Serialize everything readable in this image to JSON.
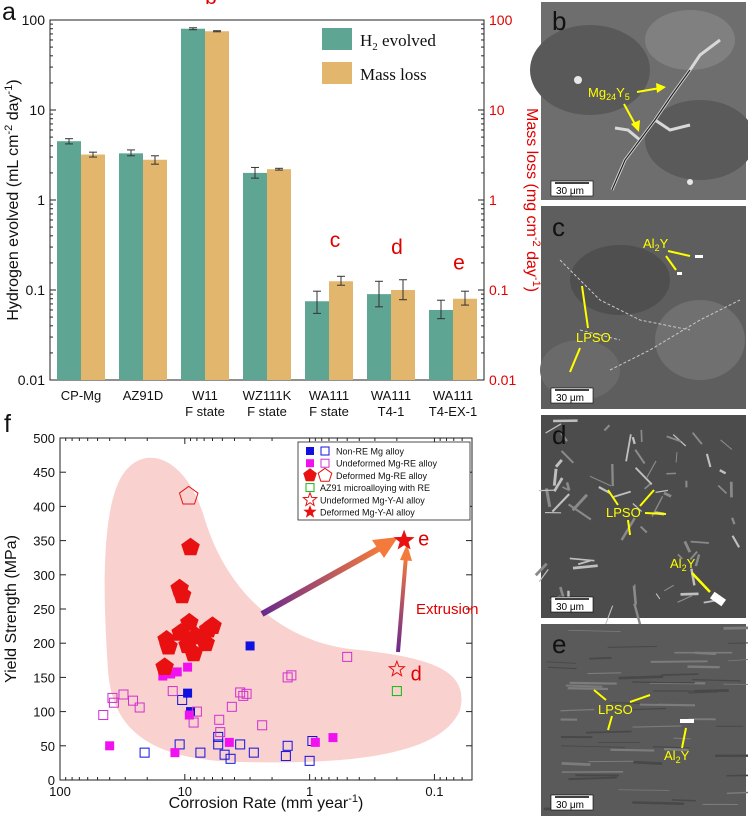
{
  "panel_labels": {
    "a": "a",
    "b": "b",
    "c": "c",
    "d": "d",
    "e": "e",
    "f": "f"
  },
  "chart_data": [
    {
      "type": "bar",
      "panel": "a",
      "categories": [
        "CP-Mg",
        "AZ91D",
        "W11|F state",
        "WZ111K|F state",
        "WA111|F state",
        "WA111|T4-1",
        "WA111|T4-EX-1"
      ],
      "series": [
        {
          "name": "H2 evolved",
          "values": [
            4.5,
            3.3,
            80,
            2.0,
            0.075,
            0.09,
            0.06
          ],
          "err_low": [
            4.2,
            3.1,
            78,
            1.75,
            0.055,
            0.065,
            0.048
          ],
          "err_high": [
            4.8,
            3.6,
            82,
            2.3,
            0.097,
            0.125,
            0.077
          ],
          "color": "#5ea594"
        },
        {
          "name": "Mass loss",
          "values": [
            3.2,
            2.8,
            75,
            2.2,
            0.125,
            0.1,
            0.08
          ],
          "err_low": [
            3.0,
            2.5,
            74,
            2.15,
            0.113,
            0.078,
            0.068
          ],
          "err_high": [
            3.4,
            3.1,
            76,
            2.25,
            0.142,
            0.13,
            0.097
          ],
          "color": "#e2b66c"
        }
      ],
      "legend": {
        "h2_prefix": "H",
        "h2_sub": "2",
        "h2_suffix": " evolved",
        "mass": "Mass loss"
      },
      "ylabel_left": {
        "main": "Hydrogen evolved (mL cm",
        "sup1": "-2",
        "mid": " day",
        "sup2": "-1",
        "end": ")"
      },
      "ylabel_right": {
        "main": "Mass loss (mg cm",
        "sup1": "-2",
        "mid": " day",
        "sup2": "-1",
        "end": ")"
      },
      "yscale": "log",
      "ylim": [
        0.01,
        100
      ],
      "yticks": [
        "0.01",
        "0.1",
        "1",
        "10",
        "100"
      ],
      "annotations": [
        {
          "text": "b",
          "category": 2,
          "value": 150
        },
        {
          "text": "c",
          "category": 4,
          "value": 0.3
        },
        {
          "text": "d",
          "category": 5,
          "value": 0.25
        },
        {
          "text": "e",
          "category": 6,
          "value": 0.17
        }
      ]
    },
    {
      "type": "scatter",
      "panel": "f",
      "xlabel": {
        "main": "Corrosion Rate (mm year",
        "sup": "-1",
        "end": ")"
      },
      "ylabel": "Yield Strength (MPa)",
      "xscale": "log_reversed",
      "xlim": [
        100,
        0.05
      ],
      "ylim": [
        0,
        500
      ],
      "xticks": [
        "100",
        "10",
        "1",
        "0.1"
      ],
      "yticks": [
        "0",
        "50",
        "100",
        "150",
        "200",
        "250",
        "300",
        "350",
        "400",
        "450",
        "500"
      ],
      "legend": [
        {
          "key": "nonre",
          "filled": "Non-RE Mg alloy"
        },
        {
          "key": "undef",
          "filled": "Undeformed Mg-RE alloy"
        },
        {
          "key": "def",
          "filled": "Deformed Mg-RE alloy"
        },
        {
          "key": "az91",
          "filled": "AZ91 microalloying with RE"
        },
        {
          "key": "undefY",
          "filled": "Undeformed Mg-Y-Al alloy"
        },
        {
          "key": "defY",
          "filled": "Deformed Mg-Y-Al alloy"
        }
      ],
      "series": [
        {
          "name": "Non-RE Mg alloy",
          "key": "nonre",
          "marker": "square",
          "filled": true,
          "color": "#1010e0",
          "points": [
            [
              3.0,
              196
            ],
            [
              9.5,
              127
            ],
            [
              9.0,
              100
            ]
          ]
        },
        {
          "name": "Non-RE Mg alloy (open)",
          "key": "nonre",
          "marker": "square",
          "filled": false,
          "color": "#1010e0",
          "points": [
            [
              21,
              40
            ],
            [
              11,
              52
            ],
            [
              10.5,
              117
            ],
            [
              7.5,
              40
            ],
            [
              5.4,
              63
            ],
            [
              5.4,
              52
            ],
            [
              4.8,
              37
            ],
            [
              4.3,
              31
            ],
            [
              3.6,
              52
            ],
            [
              2.8,
              40
            ],
            [
              1.55,
              35
            ],
            [
              1.5,
              50
            ],
            [
              1.0,
              28
            ],
            [
              0.95,
              57
            ]
          ]
        },
        {
          "name": "Undeformed Mg-RE alloy",
          "key": "undef",
          "marker": "square",
          "filled": true,
          "color": "#f010f0",
          "points": [
            [
              40,
              50
            ],
            [
              15,
              152
            ],
            [
              13,
              155
            ],
            [
              11.5,
              158
            ],
            [
              9.5,
              165
            ],
            [
              9.2,
              95
            ],
            [
              12,
              40
            ],
            [
              4.4,
              55
            ],
            [
              0.9,
              55
            ],
            [
              0.65,
              62
            ]
          ]
        },
        {
          "name": "Undeformed Mg-RE alloy (open)",
          "key": "undef",
          "marker": "square",
          "filled": false,
          "color": "#d030d0",
          "points": [
            [
              45,
              95
            ],
            [
              38,
              120
            ],
            [
              37,
              113
            ],
            [
              31,
              125
            ],
            [
              26,
              116
            ],
            [
              23,
              106
            ],
            [
              12.5,
              130
            ],
            [
              8.5,
              84
            ],
            [
              8.0,
              100
            ],
            [
              5.3,
              88
            ],
            [
              5.2,
              70
            ],
            [
              4.2,
              107
            ],
            [
              3.6,
              128
            ],
            [
              3.4,
              123
            ],
            [
              3.2,
              126
            ],
            [
              2.4,
              80
            ],
            [
              1.5,
              150
            ],
            [
              1.4,
              153
            ],
            [
              0.5,
              180
            ]
          ]
        },
        {
          "name": "Deformed Mg-RE alloy",
          "key": "def",
          "marker": "pentagon",
          "filled": true,
          "color": "#e81010",
          "points": [
            [
              9.0,
              340
            ],
            [
              11,
              280
            ],
            [
              10.5,
              270
            ],
            [
              9.2,
              230
            ],
            [
              6.5,
              220
            ],
            [
              6.0,
              225
            ],
            [
              14,
              205
            ],
            [
              13.5,
              195
            ],
            [
              9.5,
              197
            ],
            [
              10.8,
              215
            ],
            [
              8.5,
              185
            ],
            [
              8.1,
              210
            ],
            [
              6.8,
              200
            ],
            [
              14.5,
              165
            ]
          ]
        },
        {
          "name": "Deformed Mg-RE alloy (open)",
          "key": "def",
          "marker": "pentagon",
          "filled": false,
          "color": "#e81010",
          "points": [
            [
              9.3,
              415
            ]
          ]
        },
        {
          "name": "AZ91 microalloying with RE",
          "key": "az91",
          "marker": "square",
          "filled": false,
          "color": "#10b810",
          "points": [
            [
              0.2,
              130
            ]
          ]
        },
        {
          "name": "Undeformed Mg-Y-Al alloy",
          "key": "undefY",
          "marker": "star",
          "filled": false,
          "color": "#e81010",
          "points": [
            [
              0.2,
              162
            ]
          ]
        },
        {
          "name": "Deformed Mg-Y-Al alloy",
          "key": "defY",
          "marker": "star",
          "filled": true,
          "color": "#e81010",
          "points": [
            [
              0.175,
              350
            ]
          ]
        }
      ],
      "point_labels": [
        {
          "text": "e",
          "x": 0.135,
          "y": 353
        },
        {
          "text": "d",
          "x": 0.155,
          "y": 156
        }
      ],
      "annotation": "Extrusion"
    }
  ],
  "micrographs": [
    {
      "panel": "b",
      "labels": {
        "phase": {
          "base": "Mg",
          "s1": "24",
          "mid": "Y",
          "s2": "5"
        }
      },
      "scale_bar": "30 μm"
    },
    {
      "panel": "c",
      "labels": {
        "al2y": {
          "base": "Al",
          "s1": "2",
          "end": "Y"
        },
        "lpso": "LPSO"
      },
      "scale_bar": "30 μm"
    },
    {
      "panel": "d",
      "labels": {
        "lpso": "LPSO",
        "al2y": {
          "base": "Al",
          "s1": "2",
          "end": "Y"
        }
      },
      "scale_bar": "30 μm"
    },
    {
      "panel": "e",
      "labels": {
        "lpso": "LPSO",
        "al2y": {
          "base": "Al",
          "s1": "2",
          "end": "Y"
        }
      },
      "scale_bar": "30 μm"
    }
  ]
}
